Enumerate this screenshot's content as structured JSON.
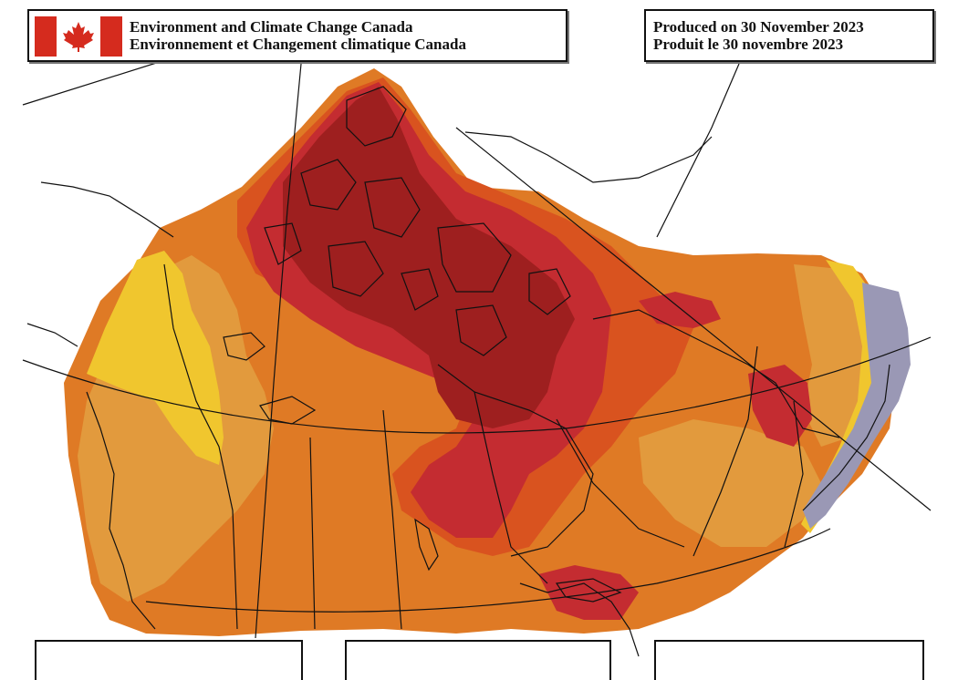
{
  "header": {
    "org_en": "Environment and Climate Change Canada",
    "org_fr": "Environnement et Changement climatique Canada",
    "produced_en": "Produced on 30 November 2023",
    "produced_fr": "Produit le 30 novembre 2023"
  },
  "flag": {
    "color": "#d52b1e",
    "icon": "maple-leaf-icon"
  },
  "map": {
    "background": "#ffffff",
    "line_color": "#111111",
    "field_colors": {
      "darkest_red": "#9e1f1f",
      "red": "#c42c31",
      "orange_red": "#d9531f",
      "orange": "#df7a25",
      "light_orange": "#e29a3d",
      "yellow": "#f0c62e",
      "grey_purple": "#9a98b5"
    }
  }
}
